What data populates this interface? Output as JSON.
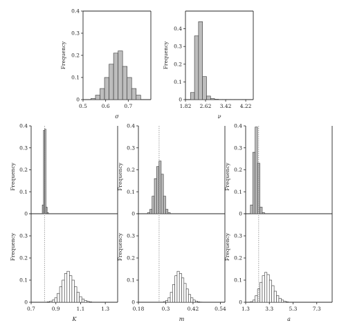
{
  "chart_data": [
    {
      "id": "sigma",
      "type": "bar",
      "xlabel": "σ",
      "ylabel": "Frequency",
      "xlim": [
        0.5,
        0.8
      ],
      "ylim": [
        0,
        0.4
      ],
      "xticks": [
        "0.5",
        "0.6",
        "0.7"
      ],
      "xtick_values": [
        0.5,
        0.6,
        0.7
      ],
      "yticks": [
        "0",
        "0.1",
        "0.2",
        "0.3",
        "0.4"
      ],
      "ytick_values": [
        0,
        0.1,
        0.2,
        0.3,
        0.4
      ],
      "fill": "#bdbdbd",
      "bin_edges": [
        0.535,
        0.555,
        0.575,
        0.595,
        0.615,
        0.635,
        0.655,
        0.675,
        0.695,
        0.715,
        0.735,
        0.755
      ],
      "values": [
        0.005,
        0.02,
        0.05,
        0.1,
        0.16,
        0.21,
        0.22,
        0.15,
        0.1,
        0.05,
        0.02
      ]
    },
    {
      "id": "nu",
      "type": "bar",
      "xlabel": "ν",
      "ylabel": "Frequency",
      "xlim": [
        1.82,
        4.52
      ],
      "ylim": [
        0,
        0.5
      ],
      "xticks": [
        "1.82",
        "2.62",
        "3.42",
        "4.22"
      ],
      "xtick_values": [
        1.82,
        2.62,
        3.42,
        4.22
      ],
      "yticks": [
        "0",
        "0.1",
        "0.2",
        "0.3",
        "0.4"
      ],
      "ytick_values": [
        0,
        0.1,
        0.2,
        0.3,
        0.4
      ],
      "fill": "#bdbdbd",
      "bin_edges": [
        2.02,
        2.18,
        2.34,
        2.5,
        2.66,
        2.82,
        2.98,
        3.14,
        3.3,
        3.46,
        3.62,
        3.78,
        3.94,
        4.1,
        4.26
      ],
      "values": [
        0.04,
        0.36,
        0.44,
        0.13,
        0.02,
        0.006,
        0.002,
        0.001,
        0.001,
        0.001,
        0.001,
        0.001,
        0.001,
        0.001
      ]
    },
    {
      "id": "K",
      "type": "bar",
      "xlabel": "K",
      "ylabel": "Frequency",
      "xlim": [
        0.7,
        1.4
      ],
      "xticks": [
        "0.7",
        "0.9",
        "1.1",
        "1.3"
      ],
      "xtick_values": [
        0.7,
        0.9,
        1.1,
        1.3
      ],
      "reference_x": 0.808,
      "top": {
        "ylim": [
          0,
          0.4
        ],
        "yticks": [
          "0",
          "0.1",
          "0.2",
          "0.3",
          "0.4"
        ],
        "ytick_values": [
          0,
          0.1,
          0.2,
          0.3,
          0.4
        ],
        "fill": "#bdbdbd",
        "bin_edges": [
          0.79,
          0.8,
          0.81,
          0.82,
          0.83,
          0.84
        ],
        "values": [
          0.04,
          0.38,
          0.385,
          0.03,
          0.005
        ]
      },
      "bottom": {
        "ylim": [
          0,
          0.4
        ],
        "yticks": [
          "0",
          "0.1",
          "0.2",
          "0.3",
          "0.4"
        ],
        "ytick_values": [
          0,
          0.1,
          0.2,
          0.3,
          0.4
        ],
        "fill": "#ffffff",
        "bin_edges": [
          0.83,
          0.85,
          0.87,
          0.89,
          0.91,
          0.93,
          0.95,
          0.97,
          0.99,
          1.01,
          1.03,
          1.05,
          1.07,
          1.09,
          1.11,
          1.13,
          1.15,
          1.17,
          1.19
        ],
        "values": [
          0.002,
          0.005,
          0.01,
          0.02,
          0.04,
          0.07,
          0.1,
          0.13,
          0.14,
          0.12,
          0.1,
          0.07,
          0.045,
          0.025,
          0.015,
          0.008,
          0.004,
          0.002
        ]
      }
    },
    {
      "id": "m",
      "type": "bar",
      "xlabel": "m",
      "ylabel": "Frequency",
      "xlim": [
        0.18,
        0.56
      ],
      "xticks": [
        "0.18",
        "0.3",
        "0.42",
        "0.54"
      ],
      "xtick_values": [
        0.18,
        0.3,
        0.42,
        0.54
      ],
      "reference_x": 0.271,
      "top": {
        "ylim": [
          0,
          0.4
        ],
        "yticks": [
          "0",
          "0.1",
          "0.2",
          "0.3",
          "0.4"
        ],
        "ytick_values": [
          0,
          0.1,
          0.2,
          0.3,
          0.4
        ],
        "fill": "#bdbdbd",
        "bin_edges": [
          0.22,
          0.23,
          0.24,
          0.25,
          0.26,
          0.27,
          0.28,
          0.29,
          0.3,
          0.31,
          0.32
        ],
        "values": [
          0.005,
          0.02,
          0.08,
          0.16,
          0.215,
          0.24,
          0.18,
          0.08,
          0.02,
          0.005
        ]
      },
      "bottom": {
        "ylim": [
          0,
          0.4
        ],
        "yticks": [
          "0",
          "0.1",
          "0.2",
          "0.3",
          "0.4"
        ],
        "ytick_values": [
          0,
          0.1,
          0.2,
          0.3,
          0.4
        ],
        "fill": "#ffffff",
        "bin_edges": [
          0.29,
          0.3,
          0.31,
          0.32,
          0.33,
          0.34,
          0.35,
          0.36,
          0.37,
          0.38,
          0.39,
          0.4,
          0.41,
          0.42,
          0.43,
          0.44,
          0.45,
          0.46
        ],
        "values": [
          0.003,
          0.008,
          0.02,
          0.045,
          0.08,
          0.12,
          0.14,
          0.13,
          0.11,
          0.085,
          0.06,
          0.035,
          0.02,
          0.01,
          0.005,
          0.002,
          0.001
        ]
      }
    },
    {
      "id": "a",
      "type": "bar",
      "xlabel": "a",
      "ylabel": "Frequency",
      "xlim": [
        1.3,
        8.6
      ],
      "xticks": [
        "1.3",
        "3.3",
        "5.3",
        "7.3"
      ],
      "xtick_values": [
        1.3,
        3.3,
        5.3,
        7.3
      ],
      "reference_x": 2.4,
      "top": {
        "ylim": [
          0,
          0.4
        ],
        "yticks": [
          "0",
          "0.1",
          "0.2",
          "0.3",
          "0.4"
        ],
        "ytick_values": [
          0,
          0.1,
          0.2,
          0.3,
          0.4
        ],
        "fill": "#bdbdbd",
        "bin_edges": [
          1.7,
          1.9,
          2.1,
          2.3,
          2.5,
          2.7,
          2.9
        ],
        "values": [
          0.04,
          0.28,
          0.395,
          0.23,
          0.03,
          0.005
        ]
      },
      "bottom": {
        "ylim": [
          0,
          0.4
        ],
        "yticks": [
          "0",
          "0.1",
          "0.2",
          "0.3",
          "0.4"
        ],
        "ytick_values": [
          0,
          0.1,
          0.2,
          0.3,
          0.4
        ],
        "fill": "#ffffff",
        "bin_edges": [
          1.7,
          1.9,
          2.1,
          2.3,
          2.5,
          2.7,
          2.9,
          3.1,
          3.3,
          3.5,
          3.7,
          3.9,
          4.1,
          4.3,
          4.5,
          4.7,
          4.9
        ],
        "values": [
          0.003,
          0.01,
          0.03,
          0.06,
          0.09,
          0.12,
          0.135,
          0.125,
          0.1,
          0.075,
          0.05,
          0.03,
          0.018,
          0.01,
          0.005,
          0.002
        ]
      }
    }
  ]
}
